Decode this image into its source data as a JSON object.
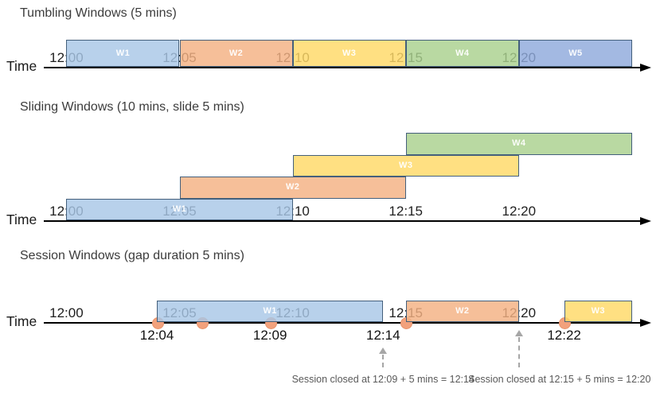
{
  "colors": {
    "window_fills": {
      "blue": "#A8C7E6",
      "orange": "#F4B183",
      "yellow": "#FFD966",
      "green": "#A9D18E",
      "periwinkle": "#8FAADC"
    },
    "window_border": "#44607C",
    "window_label_text": "#FFFFFF",
    "axis_line": "#000000",
    "title_text": "#3C3C3C",
    "tick_text": "#1F1F1F",
    "event_label_text": "#111111",
    "event_dot_fill": "#F2A17C",
    "event_dot_border": "#E8946C",
    "annotation_text": "#595959",
    "annotation_arrow": "#A6A6A6"
  },
  "sections": [
    {
      "id": "tumbling",
      "title": "Tumbling Windows (5 mins)",
      "time_axis_label": "Time",
      "ticks": [
        "12:00",
        "12:05",
        "12:10",
        "12:15",
        "12:20"
      ],
      "windows": [
        {
          "label": "W1",
          "start": "12:00",
          "end": "12:05",
          "color": "blue",
          "row": 0
        },
        {
          "label": "W2",
          "start": "12:05",
          "end": "12:10",
          "color": "orange",
          "row": 0
        },
        {
          "label": "W3",
          "start": "12:10",
          "end": "12:15",
          "color": "yellow",
          "row": 0
        },
        {
          "label": "W4",
          "start": "12:15",
          "end": "12:20",
          "color": "green",
          "row": 0
        },
        {
          "label": "W5",
          "start": "12:20",
          "end": "12:25",
          "color": "periwinkle",
          "row": 0
        }
      ]
    },
    {
      "id": "sliding",
      "title": "Sliding Windows (10 mins, slide 5 mins)",
      "time_axis_label": "Time",
      "ticks": [
        "12:00",
        "12:05",
        "12:10",
        "12:15",
        "12:20"
      ],
      "windows": [
        {
          "label": "W1",
          "start": "12:00",
          "end": "12:10",
          "color": "blue",
          "row": 0
        },
        {
          "label": "W2",
          "start": "12:05",
          "end": "12:15",
          "color": "orange",
          "row": 1
        },
        {
          "label": "W3",
          "start": "12:10",
          "end": "12:20",
          "color": "yellow",
          "row": 2
        },
        {
          "label": "W4",
          "start": "12:15",
          "end": "12:25",
          "color": "green",
          "row": 3
        }
      ]
    },
    {
      "id": "session",
      "title": "Session Windows (gap duration 5 mins)",
      "time_axis_label": "Time",
      "ticks": [
        "12:00",
        "12:05",
        "12:10",
        "12:15",
        "12:20"
      ],
      "windows": [
        {
          "label": "W1",
          "start": "12:04",
          "end": "12:14",
          "color": "blue",
          "row": 0
        },
        {
          "label": "W2",
          "start": "12:15",
          "end": "12:20",
          "color": "orange",
          "row": 0
        },
        {
          "label": "W3",
          "start": "12:22",
          "end": "12:25",
          "color": "yellow",
          "row": 0
        }
      ],
      "events": [
        {
          "time": "12:04",
          "label": "12:04"
        },
        {
          "time": "12:06",
          "label": ""
        },
        {
          "time": "12:09",
          "label": "12:09"
        },
        {
          "time": "12:15",
          "label": ""
        },
        {
          "time": "12:22",
          "label": "12:22"
        }
      ],
      "extra_time_labels": [
        {
          "time": "12:14",
          "label": "12:14"
        }
      ],
      "annotations": [
        {
          "text": "Session closed at 12:09 + 5 mins = 12:14",
          "arrow_time": "12:14"
        },
        {
          "text": "Session closed at 12:15 + 5 mins = 12:20",
          "arrow_time": "12:20"
        }
      ]
    }
  ]
}
